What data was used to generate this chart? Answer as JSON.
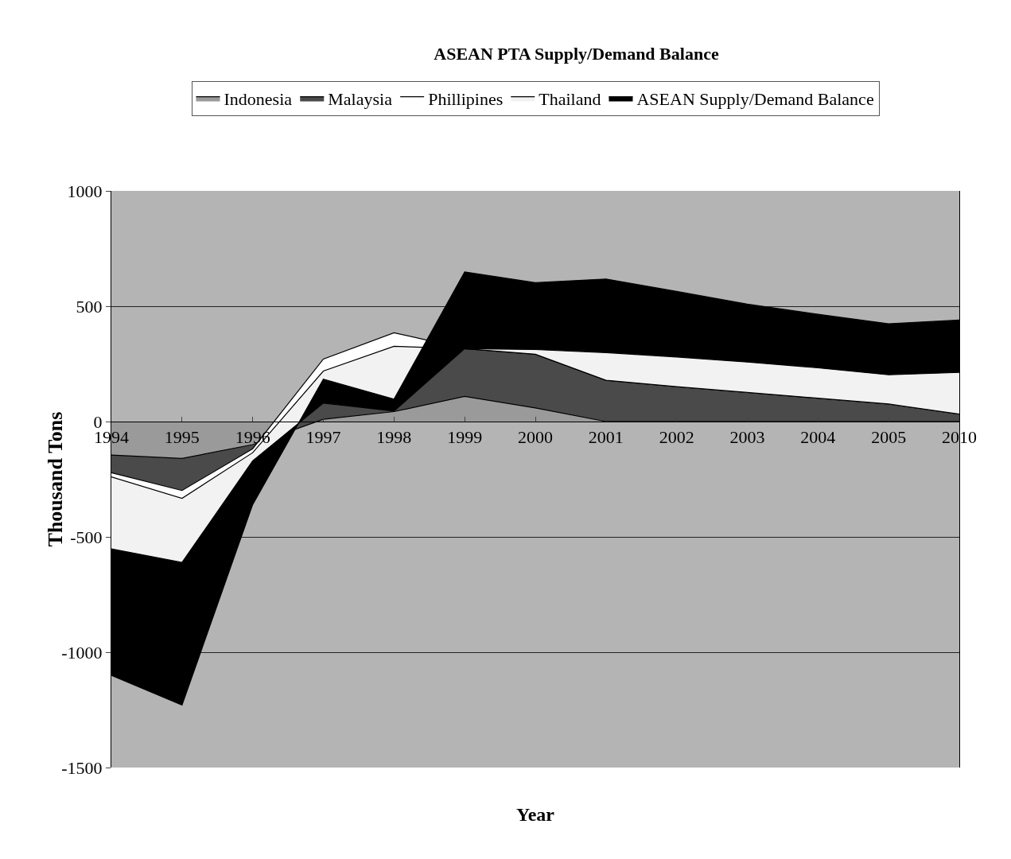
{
  "chart_data": {
    "type": "area",
    "stacked": true,
    "title": "ASEAN PTA Supply/Demand Balance",
    "xlabel": "Year",
    "ylabel": "Thousand Tons",
    "categories": [
      "1994",
      "1995",
      "1996",
      "1997",
      "1998",
      "1999",
      "2000",
      "2001",
      "2002",
      "2003",
      "2004",
      "2005",
      "2010"
    ],
    "series": [
      {
        "name": "Indonesia",
        "color": "#9a9a9a",
        "values": [
          -145,
          -160,
          -100,
          10,
          43,
          109,
          59,
          0,
          0,
          0,
          0,
          0,
          0
        ]
      },
      {
        "name": "Malaysia",
        "color": "#4a4a4a",
        "values": [
          -77,
          -139,
          -18,
          261,
          342,
          207,
          233,
          179,
          151,
          126,
          101,
          76,
          32
        ]
      },
      {
        "name": "Phillipines",
        "color": "#ffffff",
        "values": [
          -18,
          -34,
          -17,
          -52,
          -59,
          0,
          0,
          0,
          0,
          0,
          0,
          0,
          0
        ]
      },
      {
        "name": "Thailand",
        "color": "#f2f2f2",
        "values": [
          -312,
          -278,
          -35,
          -139,
          -281,
          0,
          20,
          120,
          129,
          132,
          132,
          127,
          181
        ]
      },
      {
        "name": "ASEAN Supply/Demand Balance",
        "color": "#000000",
        "values": [
          -548,
          -618,
          -190,
          104,
          52,
          333,
          290,
          319,
          284,
          251,
          232,
          221,
          227
        ]
      }
    ],
    "ylim": [
      -1500,
      1000
    ],
    "yticks": [
      -1500,
      -1000,
      -500,
      0,
      500,
      1000
    ],
    "grid": "y",
    "legend": "top"
  }
}
